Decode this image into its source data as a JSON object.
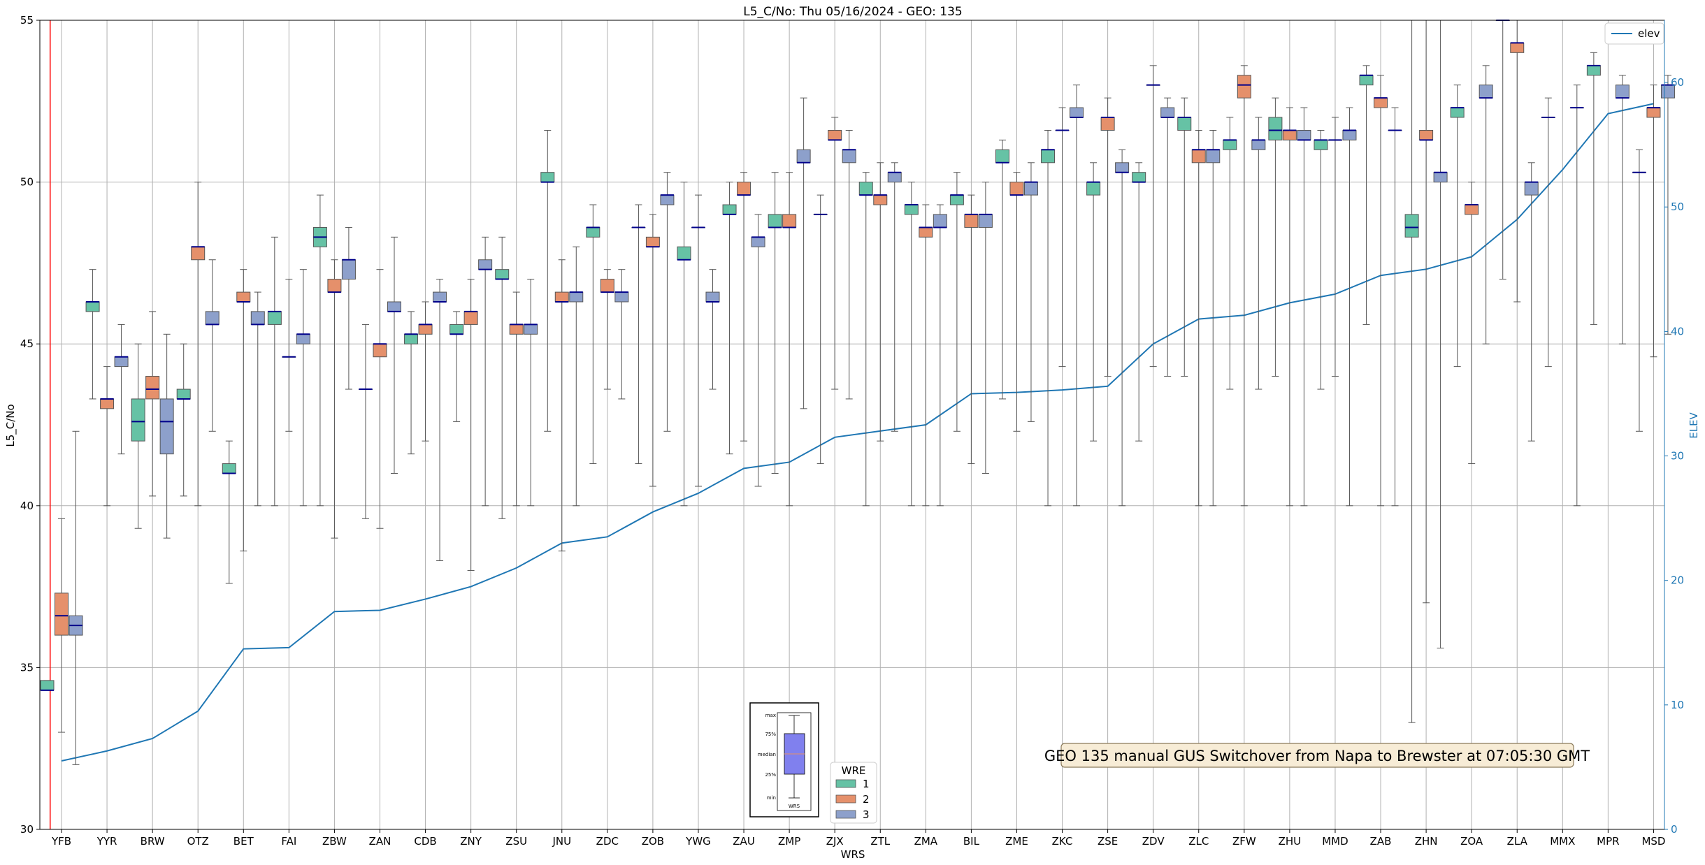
{
  "chart_data": {
    "type": "box",
    "title": "L5_C/No: Thu 05/16/2024 - GEO: 135",
    "xlabel": "WRS",
    "ylabel": "L5_C/No",
    "y2label": "ELEV",
    "ylim": [
      30,
      55
    ],
    "y2lim": [
      0,
      65
    ],
    "yticks": [
      30,
      35,
      40,
      45,
      50,
      55
    ],
    "y2ticks": [
      0,
      10,
      20,
      30,
      40,
      50,
      60
    ],
    "grid": true,
    "categories": [
      "YFB",
      "YYR",
      "BRW",
      "OTZ",
      "BET",
      "FAI",
      "ZBW",
      "ZAN",
      "CDB",
      "ZNY",
      "ZSU",
      "JNU",
      "ZDC",
      "ZOB",
      "YWG",
      "ZAU",
      "ZMP",
      "ZJX",
      "ZTL",
      "ZMA",
      "BIL",
      "ZME",
      "ZKC",
      "ZSE",
      "ZDV",
      "ZLC",
      "ZFW",
      "ZHU",
      "MMD",
      "ZAB",
      "ZHN",
      "ZOA",
      "ZLA",
      "MMX",
      "MPR",
      "MSD"
    ],
    "colors": {
      "1": "#66c2a5",
      "2": "#e5906b",
      "3": "#8da0cb",
      "elev": "#1f77b4",
      "median": "#00008b",
      "whisker": "#555555",
      "marker_line": "#ff0000"
    },
    "boxes": [
      {
        "cat": "YFB",
        "wre": "1",
        "min": 34.3,
        "q1": 34.3,
        "med": 34.3,
        "q3": 34.6,
        "max": 34.6
      },
      {
        "cat": "YFB",
        "wre": "2",
        "min": 33.0,
        "q1": 36.0,
        "med": 36.6,
        "q3": 37.3,
        "max": 39.6
      },
      {
        "cat": "YFB",
        "wre": "3",
        "min": 32.0,
        "q1": 36.0,
        "med": 36.3,
        "q3": 36.6,
        "max": 42.3
      },
      {
        "cat": "YYR",
        "wre": "1",
        "min": 43.3,
        "q1": 46.0,
        "med": 46.3,
        "q3": 46.3,
        "max": 47.3
      },
      {
        "cat": "YYR",
        "wre": "2",
        "min": 40.0,
        "q1": 43.0,
        "med": 43.3,
        "q3": 43.3,
        "max": 44.3
      },
      {
        "cat": "YYR",
        "wre": "3",
        "min": 41.6,
        "q1": 44.3,
        "med": 44.6,
        "q3": 44.6,
        "max": 45.6
      },
      {
        "cat": "BRW",
        "wre": "1",
        "min": 39.3,
        "q1": 42.0,
        "med": 42.6,
        "q3": 43.3,
        "max": 45.0
      },
      {
        "cat": "BRW",
        "wre": "2",
        "min": 40.3,
        "q1": 43.3,
        "med": 43.6,
        "q3": 44.0,
        "max": 46.0
      },
      {
        "cat": "BRW",
        "wre": "3",
        "min": 39.0,
        "q1": 41.6,
        "med": 42.6,
        "q3": 43.3,
        "max": 45.3
      },
      {
        "cat": "OTZ",
        "wre": "1",
        "min": 40.3,
        "q1": 43.3,
        "med": 43.3,
        "q3": 43.6,
        "max": 45.0
      },
      {
        "cat": "OTZ",
        "wre": "2",
        "min": 40.0,
        "q1": 47.6,
        "med": 48.0,
        "q3": 48.0,
        "max": 50.0
      },
      {
        "cat": "OTZ",
        "wre": "3",
        "min": 42.3,
        "q1": 45.6,
        "med": 45.6,
        "q3": 46.0,
        "max": 47.6
      },
      {
        "cat": "BET",
        "wre": "1",
        "min": 37.6,
        "q1": 41.0,
        "med": 41.0,
        "q3": 41.3,
        "max": 42.0
      },
      {
        "cat": "BET",
        "wre": "2",
        "min": 38.6,
        "q1": 46.3,
        "med": 46.3,
        "q3": 46.6,
        "max": 47.3
      },
      {
        "cat": "BET",
        "wre": "3",
        "min": 40.0,
        "q1": 45.6,
        "med": 45.6,
        "q3": 46.0,
        "max": 46.6
      },
      {
        "cat": "FAI",
        "wre": "1",
        "min": 40.0,
        "q1": 45.6,
        "med": 46.0,
        "q3": 46.0,
        "max": 48.3
      },
      {
        "cat": "FAI",
        "wre": "2",
        "min": 42.3,
        "q1": 44.6,
        "med": 44.6,
        "q3": 44.6,
        "max": 47.0
      },
      {
        "cat": "FAI",
        "wre": "3",
        "min": 40.0,
        "q1": 45.0,
        "med": 45.3,
        "q3": 45.3,
        "max": 47.3
      },
      {
        "cat": "ZBW",
        "wre": "1",
        "min": 40.0,
        "q1": 48.0,
        "med": 48.3,
        "q3": 48.6,
        "max": 49.6
      },
      {
        "cat": "ZBW",
        "wre": "2",
        "min": 39.0,
        "q1": 46.6,
        "med": 46.6,
        "q3": 47.0,
        "max": 47.6
      },
      {
        "cat": "ZBW",
        "wre": "3",
        "min": 43.6,
        "q1": 47.0,
        "med": 47.6,
        "q3": 47.6,
        "max": 48.6
      },
      {
        "cat": "ZAN",
        "wre": "1",
        "min": 39.6,
        "q1": 43.6,
        "med": 43.6,
        "q3": 43.6,
        "max": 45.6
      },
      {
        "cat": "ZAN",
        "wre": "2",
        "min": 39.3,
        "q1": 44.6,
        "med": 45.0,
        "q3": 45.0,
        "max": 47.3
      },
      {
        "cat": "ZAN",
        "wre": "3",
        "min": 41.0,
        "q1": 46.0,
        "med": 46.0,
        "q3": 46.3,
        "max": 48.3
      },
      {
        "cat": "CDB",
        "wre": "1",
        "min": 41.6,
        "q1": 45.0,
        "med": 45.3,
        "q3": 45.3,
        "max": 46.0
      },
      {
        "cat": "CDB",
        "wre": "2",
        "min": 42.0,
        "q1": 45.3,
        "med": 45.6,
        "q3": 45.6,
        "max": 46.3
      },
      {
        "cat": "CDB",
        "wre": "3",
        "min": 38.3,
        "q1": 46.3,
        "med": 46.3,
        "q3": 46.6,
        "max": 47.0
      },
      {
        "cat": "ZNY",
        "wre": "1",
        "min": 42.6,
        "q1": 45.3,
        "med": 45.3,
        "q3": 45.6,
        "max": 46.0
      },
      {
        "cat": "ZNY",
        "wre": "2",
        "min": 38.0,
        "q1": 45.6,
        "med": 46.0,
        "q3": 46.0,
        "max": 47.0
      },
      {
        "cat": "ZNY",
        "wre": "3",
        "min": 40.0,
        "q1": 47.3,
        "med": 47.3,
        "q3": 47.6,
        "max": 48.3
      },
      {
        "cat": "ZSU",
        "wre": "1",
        "min": 39.6,
        "q1": 47.0,
        "med": 47.0,
        "q3": 47.3,
        "max": 48.3
      },
      {
        "cat": "ZSU",
        "wre": "2",
        "min": 40.0,
        "q1": 45.3,
        "med": 45.6,
        "q3": 45.6,
        "max": 46.6
      },
      {
        "cat": "ZSU",
        "wre": "3",
        "min": 40.0,
        "q1": 45.3,
        "med": 45.6,
        "q3": 45.6,
        "max": 47.0
      },
      {
        "cat": "JNU",
        "wre": "1",
        "min": 42.3,
        "q1": 50.0,
        "med": 50.0,
        "q3": 50.3,
        "max": 51.6
      },
      {
        "cat": "JNU",
        "wre": "2",
        "min": 38.6,
        "q1": 46.3,
        "med": 46.3,
        "q3": 46.6,
        "max": 47.6
      },
      {
        "cat": "JNU",
        "wre": "3",
        "min": 40.0,
        "q1": 46.3,
        "med": 46.6,
        "q3": 46.6,
        "max": 48.0
      },
      {
        "cat": "ZDC",
        "wre": "1",
        "min": 41.3,
        "q1": 48.3,
        "med": 48.6,
        "q3": 48.6,
        "max": 49.3
      },
      {
        "cat": "ZDC",
        "wre": "2",
        "min": 43.6,
        "q1": 46.6,
        "med": 46.6,
        "q3": 47.0,
        "max": 47.3
      },
      {
        "cat": "ZDC",
        "wre": "3",
        "min": 43.3,
        "q1": 46.3,
        "med": 46.6,
        "q3": 46.6,
        "max": 47.3
      },
      {
        "cat": "ZOB",
        "wre": "1",
        "min": 41.3,
        "q1": 48.6,
        "med": 48.6,
        "q3": 48.6,
        "max": 49.3
      },
      {
        "cat": "ZOB",
        "wre": "2",
        "min": 40.6,
        "q1": 48.0,
        "med": 48.0,
        "q3": 48.3,
        "max": 49.0
      },
      {
        "cat": "ZOB",
        "wre": "3",
        "min": 42.3,
        "q1": 49.3,
        "med": 49.6,
        "q3": 49.6,
        "max": 50.3
      },
      {
        "cat": "YWG",
        "wre": "1",
        "min": 40.0,
        "q1": 47.6,
        "med": 47.6,
        "q3": 48.0,
        "max": 50.0
      },
      {
        "cat": "YWG",
        "wre": "2",
        "min": 40.6,
        "q1": 48.6,
        "med": 48.6,
        "q3": 48.6,
        "max": 49.6
      },
      {
        "cat": "YWG",
        "wre": "3",
        "min": 43.6,
        "q1": 46.3,
        "med": 46.3,
        "q3": 46.6,
        "max": 47.3
      },
      {
        "cat": "ZAU",
        "wre": "1",
        "min": 41.6,
        "q1": 49.0,
        "med": 49.0,
        "q3": 49.3,
        "max": 50.0
      },
      {
        "cat": "ZAU",
        "wre": "2",
        "min": 42.0,
        "q1": 49.6,
        "med": 49.6,
        "q3": 50.0,
        "max": 50.3
      },
      {
        "cat": "ZAU",
        "wre": "3",
        "min": 40.6,
        "q1": 48.0,
        "med": 48.3,
        "q3": 48.3,
        "max": 49.0
      },
      {
        "cat": "ZMP",
        "wre": "1",
        "min": 41.0,
        "q1": 48.6,
        "med": 48.6,
        "q3": 49.0,
        "max": 50.3
      },
      {
        "cat": "ZMP",
        "wre": "2",
        "min": 40.0,
        "q1": 48.6,
        "med": 48.6,
        "q3": 49.0,
        "max": 50.3
      },
      {
        "cat": "ZMP",
        "wre": "3",
        "min": 43.0,
        "q1": 50.6,
        "med": 50.6,
        "q3": 51.0,
        "max": 52.6
      },
      {
        "cat": "ZJX",
        "wre": "1",
        "min": 41.3,
        "q1": 49.0,
        "med": 49.0,
        "q3": 49.0,
        "max": 49.6
      },
      {
        "cat": "ZJX",
        "wre": "2",
        "min": 43.6,
        "q1": 51.3,
        "med": 51.3,
        "q3": 51.6,
        "max": 52.0
      },
      {
        "cat": "ZJX",
        "wre": "3",
        "min": 43.3,
        "q1": 50.6,
        "med": 51.0,
        "q3": 51.0,
        "max": 51.6
      },
      {
        "cat": "ZTL",
        "wre": "1",
        "min": 40.0,
        "q1": 49.6,
        "med": 49.6,
        "q3": 50.0,
        "max": 50.3
      },
      {
        "cat": "ZTL",
        "wre": "2",
        "min": 42.0,
        "q1": 49.3,
        "med": 49.6,
        "q3": 49.6,
        "max": 50.6
      },
      {
        "cat": "ZTL",
        "wre": "3",
        "min": 42.3,
        "q1": 50.0,
        "med": 50.3,
        "q3": 50.3,
        "max": 50.6
      },
      {
        "cat": "ZMA",
        "wre": "1",
        "min": 40.0,
        "q1": 49.0,
        "med": 49.3,
        "q3": 49.3,
        "max": 50.0
      },
      {
        "cat": "ZMA",
        "wre": "2",
        "min": 40.0,
        "q1": 48.3,
        "med": 48.6,
        "q3": 48.6,
        "max": 49.3
      },
      {
        "cat": "ZMA",
        "wre": "3",
        "min": 40.0,
        "q1": 48.6,
        "med": 48.6,
        "q3": 49.0,
        "max": 49.3
      },
      {
        "cat": "BIL",
        "wre": "1",
        "min": 42.3,
        "q1": 49.3,
        "med": 49.6,
        "q3": 49.6,
        "max": 50.3
      },
      {
        "cat": "BIL",
        "wre": "2",
        "min": 41.3,
        "q1": 48.6,
        "med": 49.0,
        "q3": 49.0,
        "max": 49.6
      },
      {
        "cat": "BIL",
        "wre": "3",
        "min": 41.0,
        "q1": 48.6,
        "med": 49.0,
        "q3": 49.0,
        "max": 50.0
      },
      {
        "cat": "ZME",
        "wre": "1",
        "min": 43.3,
        "q1": 50.6,
        "med": 50.6,
        "q3": 51.0,
        "max": 51.3
      },
      {
        "cat": "ZME",
        "wre": "2",
        "min": 42.3,
        "q1": 49.6,
        "med": 49.6,
        "q3": 50.0,
        "max": 50.3
      },
      {
        "cat": "ZME",
        "wre": "3",
        "min": 42.6,
        "q1": 49.6,
        "med": 50.0,
        "q3": 50.0,
        "max": 50.6
      },
      {
        "cat": "ZKC",
        "wre": "1",
        "min": 40.0,
        "q1": 50.6,
        "med": 51.0,
        "q3": 51.0,
        "max": 51.6
      },
      {
        "cat": "ZKC",
        "wre": "2",
        "min": 44.3,
        "q1": 51.6,
        "med": 51.6,
        "q3": 51.6,
        "max": 52.3
      },
      {
        "cat": "ZKC",
        "wre": "3",
        "min": 40.0,
        "q1": 52.0,
        "med": 52.0,
        "q3": 52.3,
        "max": 53.0
      },
      {
        "cat": "ZSE",
        "wre": "1",
        "min": 42.0,
        "q1": 49.6,
        "med": 50.0,
        "q3": 50.0,
        "max": 50.6
      },
      {
        "cat": "ZSE",
        "wre": "2",
        "min": 44.0,
        "q1": 51.6,
        "med": 52.0,
        "q3": 52.0,
        "max": 52.6
      },
      {
        "cat": "ZSE",
        "wre": "3",
        "min": 40.0,
        "q1": 50.3,
        "med": 50.3,
        "q3": 50.6,
        "max": 51.0
      },
      {
        "cat": "ZDV",
        "wre": "1",
        "min": 42.0,
        "q1": 50.0,
        "med": 50.0,
        "q3": 50.3,
        "max": 50.6
      },
      {
        "cat": "ZDV",
        "wre": "2",
        "min": 44.3,
        "q1": 53.0,
        "med": 53.0,
        "q3": 53.0,
        "max": 53.6
      },
      {
        "cat": "ZDV",
        "wre": "3",
        "min": 44.0,
        "q1": 52.0,
        "med": 52.0,
        "q3": 52.3,
        "max": 52.6
      },
      {
        "cat": "ZLC",
        "wre": "1",
        "min": 44.0,
        "q1": 51.6,
        "med": 52.0,
        "q3": 52.0,
        "max": 52.6
      },
      {
        "cat": "ZLC",
        "wre": "2",
        "min": 40.0,
        "q1": 50.6,
        "med": 51.0,
        "q3": 51.0,
        "max": 51.6
      },
      {
        "cat": "ZLC",
        "wre": "3",
        "min": 40.0,
        "q1": 50.6,
        "med": 51.0,
        "q3": 51.0,
        "max": 51.6
      },
      {
        "cat": "ZFW",
        "wre": "1",
        "min": 43.6,
        "q1": 51.0,
        "med": 51.3,
        "q3": 51.3,
        "max": 52.0
      },
      {
        "cat": "ZFW",
        "wre": "2",
        "min": 40.0,
        "q1": 52.6,
        "med": 53.0,
        "q3": 53.3,
        "max": 53.6
      },
      {
        "cat": "ZFW",
        "wre": "3",
        "min": 43.6,
        "q1": 51.0,
        "med": 51.3,
        "q3": 51.3,
        "max": 52.0
      },
      {
        "cat": "ZHU",
        "wre": "1",
        "min": 44.0,
        "q1": 51.3,
        "med": 51.6,
        "q3": 52.0,
        "max": 52.6
      },
      {
        "cat": "ZHU",
        "wre": "2",
        "min": 40.0,
        "q1": 51.3,
        "med": 51.6,
        "q3": 51.6,
        "max": 52.3
      },
      {
        "cat": "ZHU",
        "wre": "3",
        "min": 40.0,
        "q1": 51.3,
        "med": 51.3,
        "q3": 51.6,
        "max": 52.3
      },
      {
        "cat": "MMD",
        "wre": "1",
        "min": 43.6,
        "q1": 51.0,
        "med": 51.3,
        "q3": 51.3,
        "max": 51.6
      },
      {
        "cat": "MMD",
        "wre": "2",
        "min": 44.0,
        "q1": 51.3,
        "med": 51.3,
        "q3": 51.3,
        "max": 52.0
      },
      {
        "cat": "MMD",
        "wre": "3",
        "min": 40.0,
        "q1": 51.3,
        "med": 51.6,
        "q3": 51.6,
        "max": 52.3
      },
      {
        "cat": "ZAB",
        "wre": "1",
        "min": 45.6,
        "q1": 53.0,
        "med": 53.3,
        "q3": 53.3,
        "max": 53.6
      },
      {
        "cat": "ZAB",
        "wre": "2",
        "min": 40.0,
        "q1": 52.3,
        "med": 52.6,
        "q3": 52.6,
        "max": 53.3
      },
      {
        "cat": "ZAB",
        "wre": "3",
        "min": 40.0,
        "q1": 51.6,
        "med": 51.6,
        "q3": 51.6,
        "max": 52.3
      },
      {
        "cat": "ZHN",
        "wre": "1",
        "min": 33.3,
        "q1": 48.3,
        "med": 48.6,
        "q3": 49.0,
        "max": 55.0
      },
      {
        "cat": "ZHN",
        "wre": "2",
        "min": 37.0,
        "q1": 51.3,
        "med": 51.3,
        "q3": 51.6,
        "max": 55.0
      },
      {
        "cat": "ZHN",
        "wre": "3",
        "min": 35.6,
        "q1": 50.0,
        "med": 50.3,
        "q3": 50.3,
        "max": 55.0
      },
      {
        "cat": "ZOA",
        "wre": "1",
        "min": 44.3,
        "q1": 52.0,
        "med": 52.3,
        "q3": 52.3,
        "max": 53.0
      },
      {
        "cat": "ZOA",
        "wre": "2",
        "min": 41.3,
        "q1": 49.0,
        "med": 49.3,
        "q3": 49.3,
        "max": 50.0
      },
      {
        "cat": "ZOA",
        "wre": "3",
        "min": 45.0,
        "q1": 52.6,
        "med": 52.6,
        "q3": 53.0,
        "max": 53.6
      },
      {
        "cat": "ZLA",
        "wre": "1",
        "min": 47.0,
        "q1": 55.0,
        "med": 55.0,
        "q3": 55.0,
        "max": 55.0
      },
      {
        "cat": "ZLA",
        "wre": "2",
        "min": 46.3,
        "q1": 54.0,
        "med": 54.3,
        "q3": 54.3,
        "max": 55.0
      },
      {
        "cat": "ZLA",
        "wre": "3",
        "min": 42.0,
        "q1": 49.6,
        "med": 50.0,
        "q3": 50.0,
        "max": 50.6
      },
      {
        "cat": "MMX",
        "wre": "1",
        "min": 44.3,
        "q1": 52.0,
        "med": 52.0,
        "q3": 52.0,
        "max": 52.6
      },
      {
        "cat": "MMX",
        "wre": "3",
        "min": 40.0,
        "q1": 52.3,
        "med": 52.3,
        "q3": 52.3,
        "max": 53.0
      },
      {
        "cat": "MPR",
        "wre": "1",
        "min": 45.6,
        "q1": 53.3,
        "med": 53.6,
        "q3": 53.6,
        "max": 54.0
      },
      {
        "cat": "MPR",
        "wre": "3",
        "min": 45.0,
        "q1": 52.6,
        "med": 52.6,
        "q3": 53.0,
        "max": 53.3
      },
      {
        "cat": "MSD",
        "wre": "1",
        "min": 42.3,
        "q1": 50.3,
        "med": 50.3,
        "q3": 50.3,
        "max": 51.0
      },
      {
        "cat": "MSD",
        "wre": "2",
        "min": 44.6,
        "q1": 52.0,
        "med": 52.3,
        "q3": 52.3,
        "max": 53.0
      },
      {
        "cat": "MSD",
        "wre": "3",
        "min": 45.3,
        "q1": 52.6,
        "med": 53.0,
        "q3": 53.0,
        "max": 53.3
      }
    ],
    "elev_series": {
      "name": "elev",
      "values": [
        5.5,
        6.3,
        7.3,
        9.5,
        14.5,
        14.6,
        17.5,
        17.6,
        18.5,
        19.5,
        21.0,
        23.0,
        23.5,
        25.5,
        27.0,
        29.0,
        29.5,
        31.5,
        32.0,
        32.5,
        35.0,
        35.1,
        35.3,
        35.6,
        39.0,
        41.0,
        41.3,
        42.3,
        43.0,
        44.5,
        45.0,
        46.0,
        49.0,
        53.0,
        57.5,
        58.3
      ]
    },
    "marker_line": {
      "category": "YFB",
      "offset": -0.25
    },
    "legend_wre_title": "WRE",
    "legend_wre_labels": [
      "1",
      "2",
      "3"
    ],
    "legend_elev_label": "elev",
    "annotation": "GEO 135 manual GUS Switchover from Napa to Brewster at 07:05:30 GMT",
    "key_labels": {
      "max": "max",
      "q3": "75%",
      "median": "median",
      "q1": "25%",
      "min": "min",
      "xlabel": "WRS"
    }
  }
}
